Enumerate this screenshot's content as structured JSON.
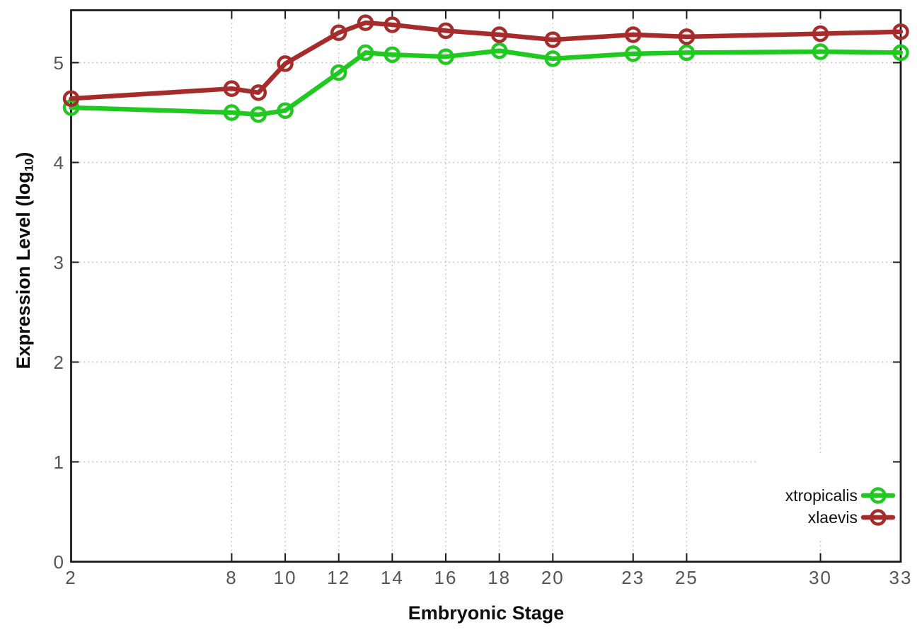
{
  "chart_data": {
    "type": "line",
    "title": "",
    "xlabel": "Embryonic Stage",
    "ylabel": "Expression Level (log10)",
    "ylabel_parts": [
      "Expression Level (log",
      "10",
      ")"
    ],
    "x": [
      2,
      8,
      9,
      10,
      12,
      13,
      14,
      16,
      18,
      20,
      23,
      25,
      30,
      33
    ],
    "series": [
      {
        "name": "xtropicalis",
        "color": "#1fc91f",
        "values": [
          4.55,
          4.5,
          4.48,
          4.52,
          4.9,
          5.1,
          5.08,
          5.06,
          5.12,
          5.04,
          5.09,
          5.1,
          5.11,
          5.1
        ]
      },
      {
        "name": "xlaevis",
        "color": "#a62c2c",
        "values": [
          4.64,
          4.74,
          4.7,
          4.99,
          5.3,
          5.4,
          5.38,
          5.32,
          5.28,
          5.23,
          5.28,
          5.26,
          5.29,
          5.31
        ]
      }
    ],
    "x_ticks": [
      2,
      8,
      10,
      12,
      14,
      16,
      18,
      20,
      23,
      25,
      30,
      33
    ],
    "y_ticks": [
      0,
      1,
      2,
      3,
      4,
      5
    ],
    "xlim": [
      2,
      33
    ],
    "ylim": [
      0,
      5.525
    ],
    "grid": true,
    "grid_style": "dotted",
    "grid_color": "#bdbdbd",
    "axis_color": "#1c1c1c",
    "tick_label_color": "#555555",
    "legend_position": "inside-bottom-right",
    "legend_background": "#ffffff",
    "marker": "open-circle"
  }
}
